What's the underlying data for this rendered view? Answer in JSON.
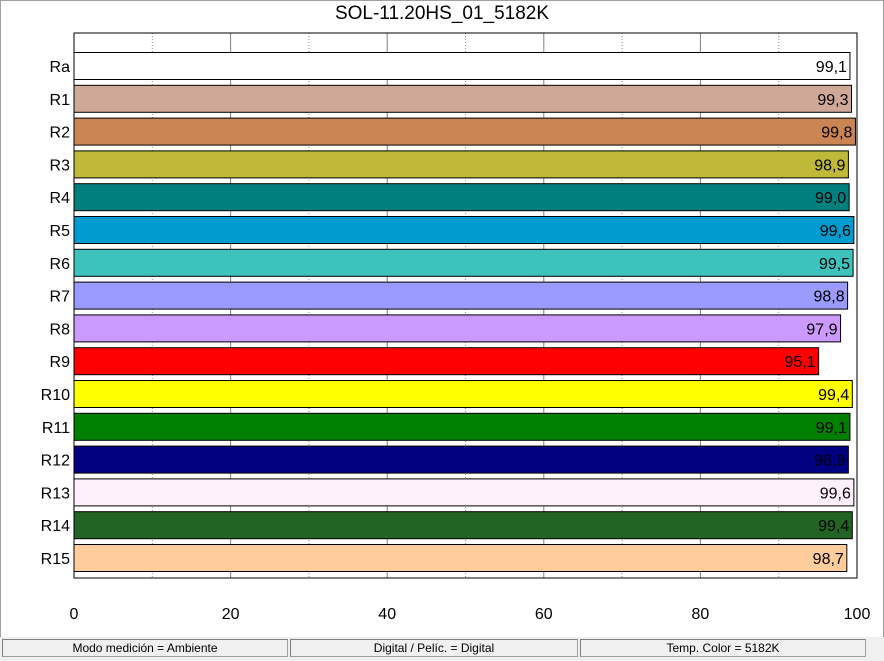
{
  "chart_data": {
    "type": "bar",
    "orientation": "horizontal",
    "title": "SOL-11.20HS_01_5182K",
    "categories": [
      "Ra",
      "R1",
      "R2",
      "R3",
      "R4",
      "R5",
      "R6",
      "R7",
      "R8",
      "R9",
      "R10",
      "R11",
      "R12",
      "R13",
      "R14",
      "R15"
    ],
    "values": [
      99.1,
      99.3,
      99.8,
      98.9,
      99.0,
      99.6,
      99.5,
      98.8,
      97.9,
      95.1,
      99.4,
      99.1,
      98.9,
      99.6,
      99.4,
      98.7
    ],
    "value_labels": [
      "99,1",
      "99,3",
      "99,8",
      "98,9",
      "99,0",
      "99,6",
      "99,5",
      "98,8",
      "97,9",
      "95,1",
      "99,4",
      "99,1",
      "98,9",
      "99,6",
      "99,4",
      "98,7"
    ],
    "colors": [
      "#ffffff",
      "#cfa898",
      "#cb8453",
      "#bfb838",
      "#007f7f",
      "#009bcf",
      "#3dc3bb",
      "#9a9aff",
      "#cc99ff",
      "#ff0000",
      "#ffff00",
      "#007f00",
      "#000080",
      "#fff0fb",
      "#236323",
      "#ffcc9b"
    ],
    "xlim": [
      0,
      100
    ],
    "x_ticks": [
      "0",
      "20",
      "40",
      "60",
      "80",
      "100"
    ],
    "grid": true
  },
  "status_bar": {
    "items": [
      "Modo medición = Ambiente",
      "Digital / Pelíc. = Digital",
      "Temp. Color = 5182K"
    ]
  }
}
